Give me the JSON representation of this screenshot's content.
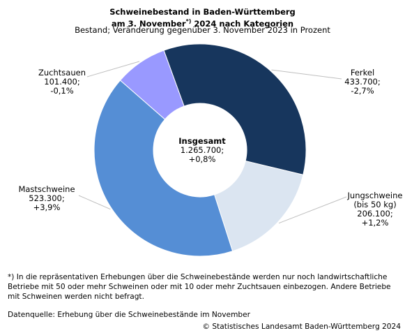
{
  "chart_data": {
    "type": "pie",
    "title_line1": "Schweinebestand in Baden-Württemberg",
    "title_line2_pre": "am 3. November",
    "title_line2_sup": "*)",
    "title_line2_post": " 2024 nach Kategorien",
    "subtitle": "Bestand; Veränderung gegenüber 3. November 2023 in Prozent",
    "center": {
      "title": "Insgesamt",
      "value": "1.265.700;",
      "change": "+0,8%"
    },
    "unit": "Bestand",
    "slices": [
      {
        "name": "Ferkel",
        "value": 433700,
        "value_label": "433.700;",
        "change": "-2,7%",
        "color": "#17365d"
      },
      {
        "name": "Jungschweine",
        "name_line2": "(bis 50 kg)",
        "value": 206100,
        "value_label": "206.100;",
        "change": "+1,2%",
        "color": "#dbe5f1"
      },
      {
        "name": "Mastschweine",
        "value": 523300,
        "value_label": "523.300;",
        "change": "+3,9%",
        "color": "#558ed5"
      },
      {
        "name": "Zuchtsauen",
        "value": 101400,
        "value_label": "101.400;",
        "change": "-0,1%",
        "color": "#9999ff"
      }
    ],
    "legend": "none"
  },
  "footnote": "*) In die repräsentativen Erhebungen über die Schweinebestände werden nur noch landwirtschaftliche Betriebe mit 50 oder mehr Schweinen oder mit 10 oder mehr Zuchtsauen einbezogen. Andere Betriebe mit Schweinen werden nicht befragt.",
  "source": "Datenquelle: Erhebung über die Schweinebestände im November",
  "copyright": "© Statistisches Landesamt Baden-Württemberg 2024"
}
